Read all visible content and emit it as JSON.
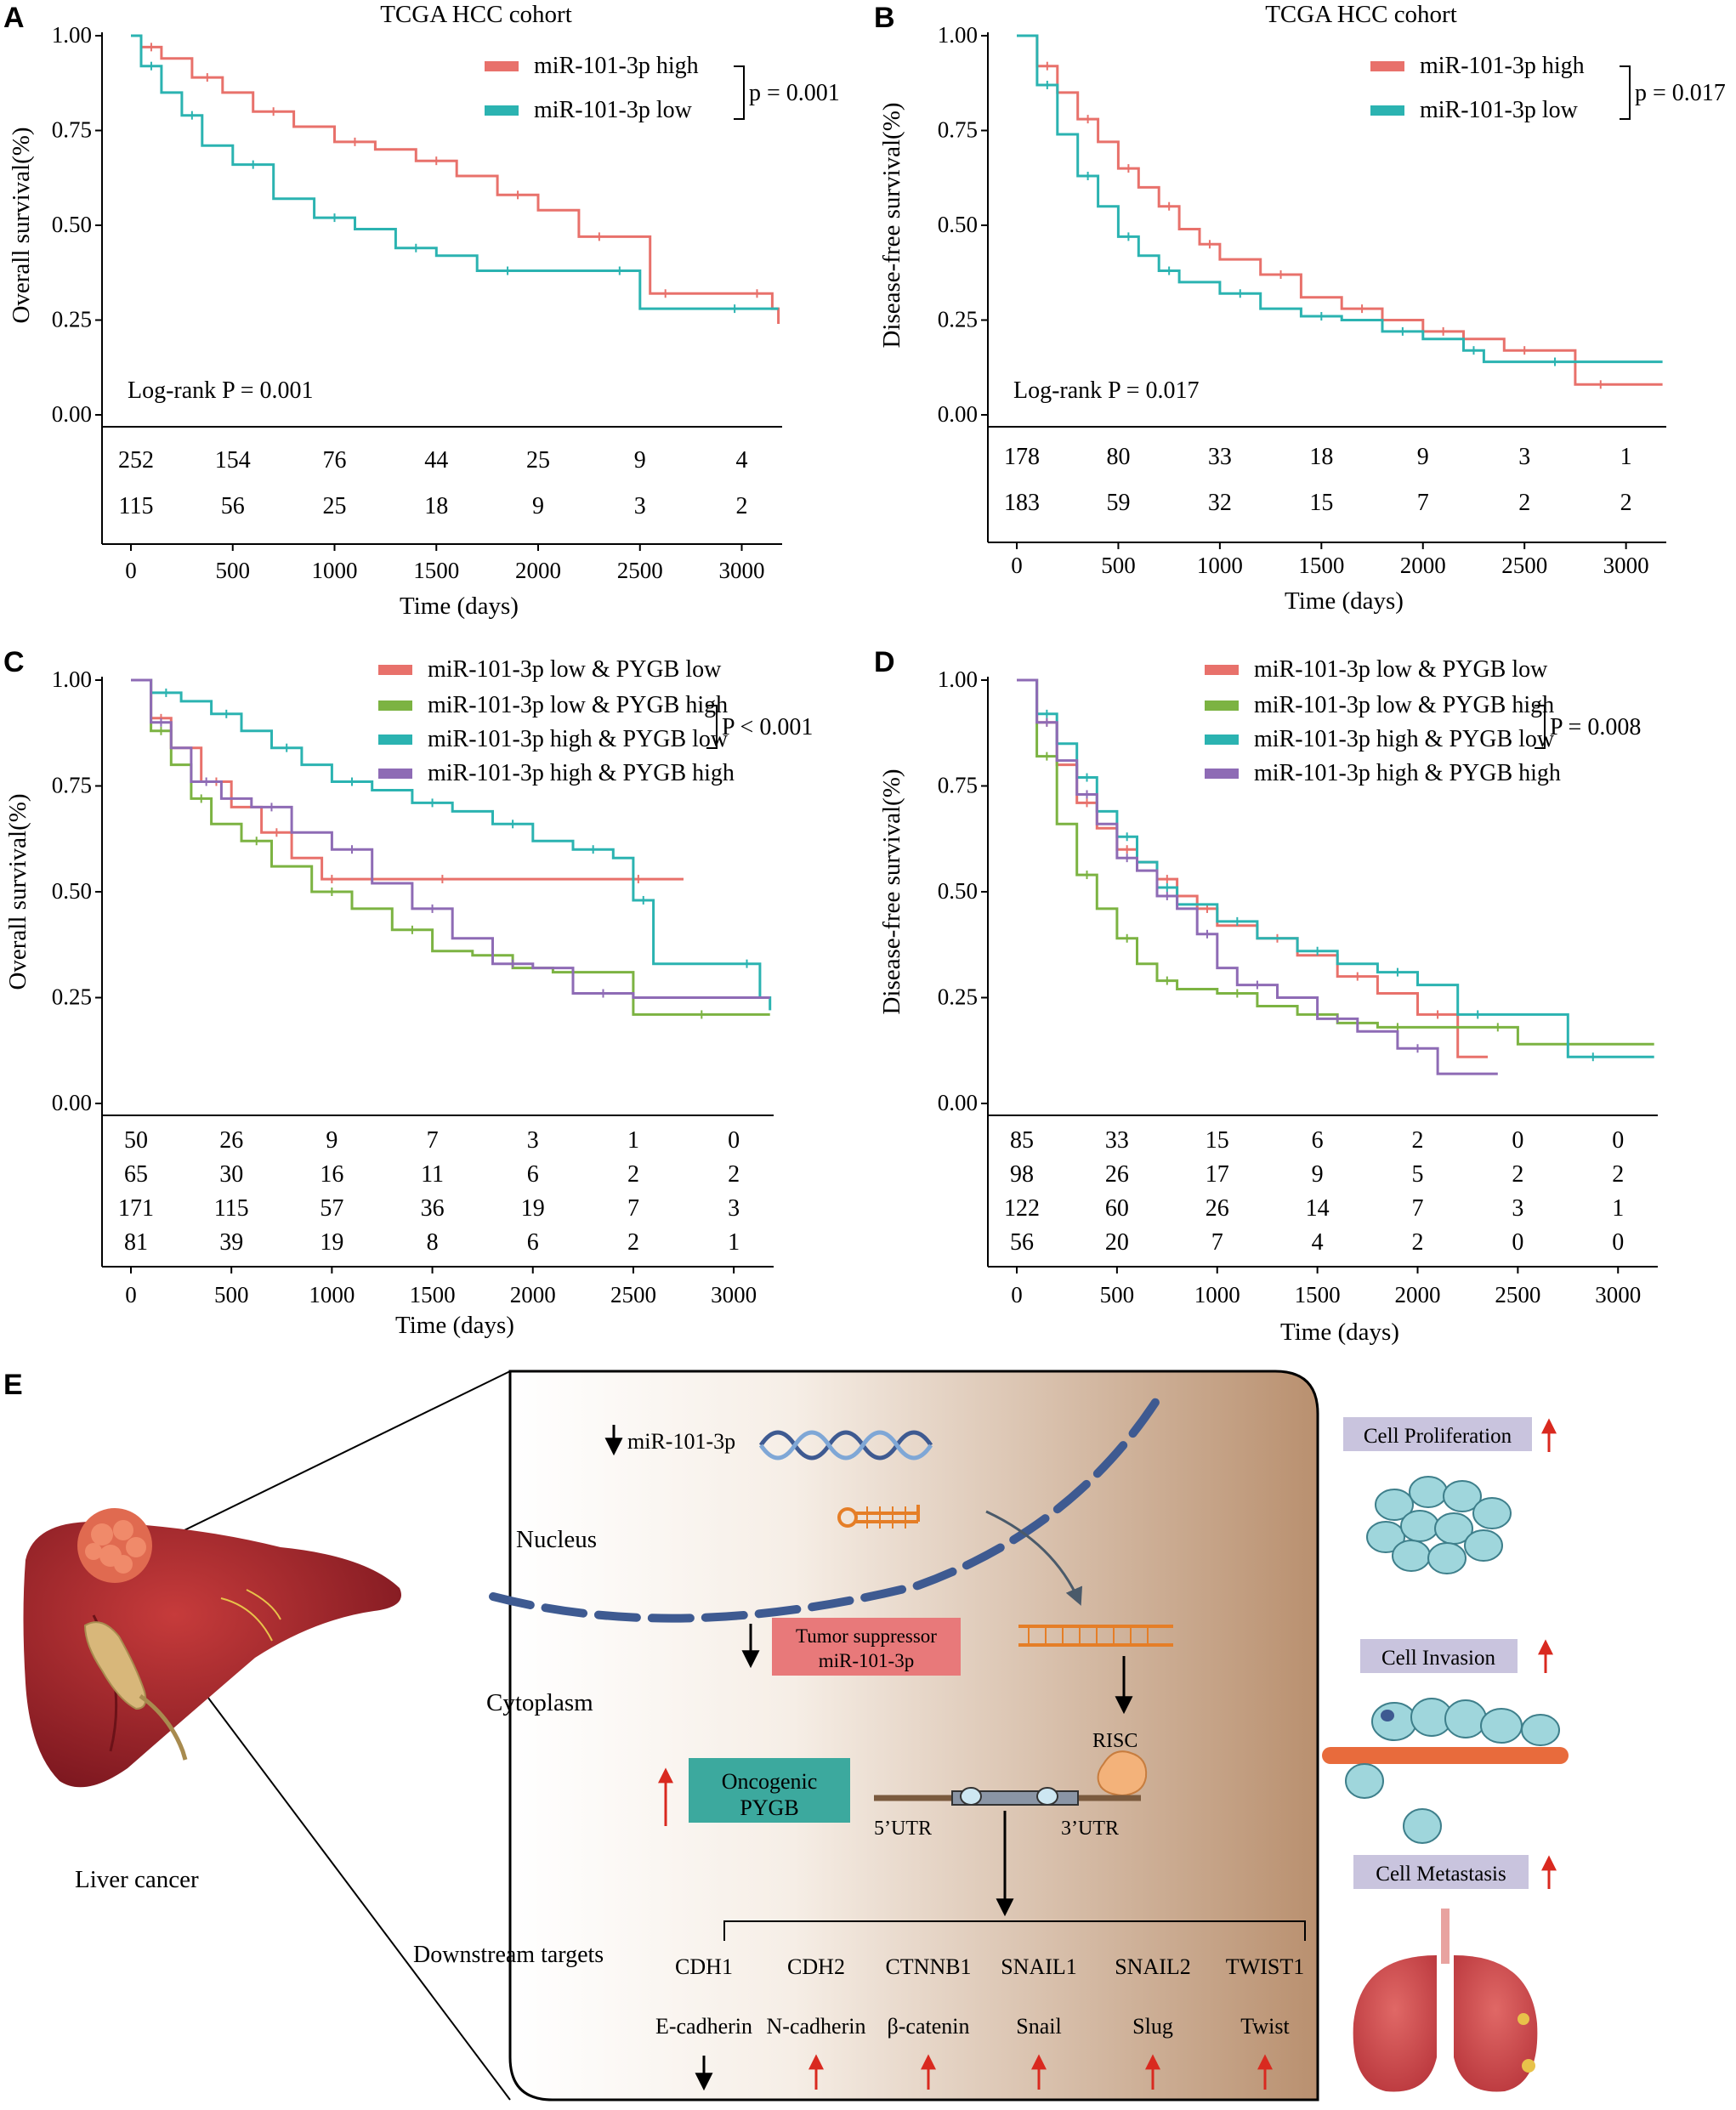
{
  "chart_data": [
    {
      "panel": "A",
      "type": "line",
      "subtype": "kaplan-meier",
      "title": "TCGA HCC cohort",
      "xlabel": "Time (days)",
      "ylabel": "Overall survival(%)",
      "xlim": [
        0,
        3200
      ],
      "ylim": [
        0,
        1
      ],
      "xticks": [
        "0",
        "500",
        "1000",
        "1500",
        "2000",
        "2500",
        "3000"
      ],
      "yticks": [
        "0.00",
        "0.25",
        "0.50",
        "0.75",
        "1.00"
      ],
      "annotation": "Log-rank P = 0.001",
      "legend_pvalue": "p = 0.001",
      "legend_position": "top-right",
      "series": [
        {
          "name": "miR-101-3p high",
          "color": "#E8716B",
          "x": [
            0,
            50,
            150,
            300,
            450,
            600,
            800,
            1000,
            1200,
            1400,
            1600,
            1800,
            2000,
            2200,
            2400,
            2550,
            2700,
            3000,
            3150,
            3180
          ],
          "y": [
            1.0,
            0.97,
            0.94,
            0.89,
            0.85,
            0.8,
            0.76,
            0.72,
            0.7,
            0.67,
            0.63,
            0.58,
            0.54,
            0.47,
            0.47,
            0.32,
            0.32,
            0.32,
            0.28,
            0.24
          ]
        },
        {
          "name": "miR-101-3p low",
          "color": "#2BB3B1",
          "x": [
            0,
            50,
            150,
            250,
            350,
            500,
            700,
            900,
            1100,
            1300,
            1500,
            1700,
            2000,
            2300,
            2500,
            2750,
            3180
          ],
          "y": [
            1.0,
            0.92,
            0.85,
            0.79,
            0.71,
            0.66,
            0.57,
            0.52,
            0.49,
            0.44,
            0.42,
            0.38,
            0.38,
            0.38,
            0.28,
            0.28,
            0.28
          ]
        }
      ],
      "risk_table": [
        [
          "252",
          "154",
          "76",
          "44",
          "25",
          "9",
          "4"
        ],
        [
          "115",
          "56",
          "25",
          "18",
          "9",
          "3",
          "2"
        ]
      ]
    },
    {
      "panel": "B",
      "type": "line",
      "subtype": "kaplan-meier",
      "title": "TCGA HCC cohort",
      "xlabel": "Time (days)",
      "ylabel": "Disease-free survival(%)",
      "xlim": [
        0,
        3200
      ],
      "ylim": [
        0,
        1
      ],
      "xticks": [
        "0",
        "500",
        "1000",
        "1500",
        "2000",
        "2500",
        "3000"
      ],
      "yticks": [
        "0.00",
        "0.25",
        "0.50",
        "0.75",
        "1.00"
      ],
      "annotation": "Log-rank P = 0.017",
      "legend_pvalue": "p = 0.017",
      "legend_position": "top-right",
      "series": [
        {
          "name": "miR-101-3p high",
          "color": "#E8716B",
          "x": [
            0,
            100,
            200,
            300,
            400,
            500,
            600,
            700,
            800,
            900,
            1000,
            1200,
            1400,
            1600,
            1800,
            2000,
            2200,
            2400,
            2600,
            2750,
            3000,
            3180
          ],
          "y": [
            1.0,
            0.92,
            0.85,
            0.78,
            0.72,
            0.65,
            0.6,
            0.55,
            0.49,
            0.45,
            0.41,
            0.37,
            0.31,
            0.28,
            0.25,
            0.22,
            0.2,
            0.17,
            0.17,
            0.08,
            0.08,
            0.08
          ]
        },
        {
          "name": "miR-101-3p low",
          "color": "#2BB3B1",
          "x": [
            0,
            100,
            200,
            300,
            400,
            500,
            600,
            700,
            800,
            1000,
            1200,
            1400,
            1600,
            1800,
            2000,
            2200,
            2300,
            2500,
            2800,
            3180
          ],
          "y": [
            1.0,
            0.87,
            0.74,
            0.63,
            0.55,
            0.47,
            0.42,
            0.38,
            0.35,
            0.32,
            0.28,
            0.26,
            0.25,
            0.22,
            0.2,
            0.17,
            0.14,
            0.14,
            0.14,
            0.14
          ]
        }
      ],
      "risk_table": [
        [
          "178",
          "80",
          "33",
          "18",
          "9",
          "3",
          "1"
        ],
        [
          "183",
          "59",
          "32",
          "15",
          "7",
          "2",
          "2"
        ]
      ]
    },
    {
      "panel": "C",
      "type": "line",
      "subtype": "kaplan-meier",
      "title": "",
      "xlabel": "Time (days)",
      "ylabel": "Overall survival(%)",
      "xlim": [
        0,
        3200
      ],
      "ylim": [
        0,
        1
      ],
      "xticks": [
        "0",
        "500",
        "1000",
        "1500",
        "2000",
        "2500",
        "3000"
      ],
      "yticks": [
        "0.00",
        "0.25",
        "0.50",
        "0.75",
        "1.00"
      ],
      "legend_pvalue": "P < 0.001",
      "legend_position": "top-right",
      "series": [
        {
          "name": "miR-101-3p low & PYGB low",
          "color": "#E8716B",
          "x": [
            0,
            100,
            200,
            350,
            500,
            650,
            800,
            950,
            1050,
            1300,
            1800,
            2300,
            2750
          ],
          "y": [
            1.0,
            0.91,
            0.84,
            0.76,
            0.7,
            0.64,
            0.58,
            0.53,
            0.53,
            0.53,
            0.53,
            0.53,
            0.53
          ]
        },
        {
          "name": "miR-101-3p low & PYGB high",
          "color": "#7CB342",
          "x": [
            0,
            100,
            200,
            300,
            400,
            550,
            700,
            900,
            1100,
            1300,
            1500,
            1700,
            1900,
            2100,
            2300,
            2500,
            3180
          ],
          "y": [
            1.0,
            0.88,
            0.8,
            0.72,
            0.66,
            0.62,
            0.56,
            0.5,
            0.46,
            0.41,
            0.36,
            0.35,
            0.32,
            0.31,
            0.31,
            0.21,
            0.21
          ]
        },
        {
          "name": "miR-101-3p high & PYGB low",
          "color": "#2BB3B1",
          "x": [
            0,
            100,
            250,
            400,
            550,
            700,
            850,
            1000,
            1200,
            1400,
            1600,
            1800,
            2000,
            2200,
            2400,
            2500,
            2600,
            3000,
            3130,
            3180
          ],
          "y": [
            1.0,
            0.97,
            0.95,
            0.92,
            0.88,
            0.84,
            0.8,
            0.76,
            0.74,
            0.71,
            0.69,
            0.66,
            0.62,
            0.6,
            0.58,
            0.48,
            0.33,
            0.33,
            0.25,
            0.22
          ]
        },
        {
          "name": "miR-101-3p high & PYGB high",
          "color": "#8E6BB5",
          "x": [
            0,
            100,
            200,
            300,
            450,
            600,
            800,
            1000,
            1200,
            1400,
            1600,
            1800,
            2000,
            2200,
            2500,
            3180
          ],
          "y": [
            1.0,
            0.9,
            0.84,
            0.76,
            0.72,
            0.7,
            0.64,
            0.6,
            0.52,
            0.46,
            0.39,
            0.33,
            0.32,
            0.26,
            0.25,
            0.25
          ]
        }
      ],
      "risk_table": [
        [
          "50",
          "26",
          "9",
          "7",
          "3",
          "1",
          "0"
        ],
        [
          "65",
          "30",
          "16",
          "11",
          "6",
          "2",
          "2"
        ],
        [
          "171",
          "115",
          "57",
          "36",
          "19",
          "7",
          "3"
        ],
        [
          "81",
          "39",
          "19",
          "8",
          "6",
          "2",
          "1"
        ]
      ]
    },
    {
      "panel": "D",
      "type": "line",
      "subtype": "kaplan-meier",
      "title": "",
      "xlabel": "Time (days)",
      "ylabel": "Disease-free survival(%)",
      "xlim": [
        0,
        3200
      ],
      "ylim": [
        0,
        1
      ],
      "xticks": [
        "0",
        "500",
        "1000",
        "1500",
        "2000",
        "2500",
        "3000"
      ],
      "yticks": [
        "0.00",
        "0.25",
        "0.50",
        "0.75",
        "1.00"
      ],
      "legend_pvalue": "P = 0.008",
      "legend_position": "top-right",
      "series": [
        {
          "name": "miR-101-3p low & PYGB low",
          "color": "#E8716B",
          "x": [
            0,
            100,
            200,
            300,
            400,
            500,
            600,
            700,
            800,
            900,
            1000,
            1200,
            1400,
            1600,
            1800,
            2000,
            2200,
            2350
          ],
          "y": [
            1.0,
            0.9,
            0.8,
            0.71,
            0.65,
            0.6,
            0.57,
            0.53,
            0.49,
            0.46,
            0.42,
            0.39,
            0.35,
            0.3,
            0.26,
            0.21,
            0.11,
            0.11
          ]
        },
        {
          "name": "miR-101-3p low & PYGB high",
          "color": "#7CB342",
          "x": [
            0,
            100,
            200,
            300,
            400,
            500,
            600,
            700,
            800,
            1000,
            1200,
            1400,
            1600,
            1800,
            2000,
            2300,
            2500,
            3180
          ],
          "y": [
            1.0,
            0.82,
            0.66,
            0.54,
            0.46,
            0.39,
            0.33,
            0.29,
            0.27,
            0.26,
            0.23,
            0.21,
            0.19,
            0.18,
            0.18,
            0.18,
            0.14,
            0.14
          ]
        },
        {
          "name": "miR-101-3p high & PYGB low",
          "color": "#2BB3B1",
          "x": [
            0,
            100,
            200,
            300,
            400,
            500,
            600,
            700,
            800,
            1000,
            1200,
            1400,
            1600,
            1800,
            2000,
            2200,
            2400,
            2750,
            3000,
            3180
          ],
          "y": [
            1.0,
            0.92,
            0.85,
            0.77,
            0.69,
            0.63,
            0.57,
            0.51,
            0.47,
            0.43,
            0.39,
            0.36,
            0.33,
            0.31,
            0.28,
            0.21,
            0.21,
            0.11,
            0.11,
            0.11
          ]
        },
        {
          "name": "miR-101-3p high & PYGB high",
          "color": "#8E6BB5",
          "x": [
            0,
            100,
            200,
            300,
            400,
            500,
            600,
            700,
            800,
            900,
            1000,
            1100,
            1300,
            1500,
            1700,
            1900,
            2100,
            2400
          ],
          "y": [
            1.0,
            0.9,
            0.81,
            0.73,
            0.66,
            0.58,
            0.55,
            0.49,
            0.46,
            0.4,
            0.32,
            0.28,
            0.25,
            0.2,
            0.17,
            0.13,
            0.07,
            0.07
          ]
        }
      ],
      "risk_table": [
        [
          "85",
          "33",
          "15",
          "6",
          "2",
          "0",
          "0"
        ],
        [
          "98",
          "26",
          "17",
          "9",
          "5",
          "2",
          "2"
        ],
        [
          "122",
          "60",
          "26",
          "14",
          "7",
          "3",
          "1"
        ],
        [
          "56",
          "20",
          "7",
          "4",
          "2",
          "0",
          "0"
        ]
      ]
    }
  ],
  "panel_labels": [
    "A",
    "B",
    "C",
    "D",
    "E"
  ],
  "diagram": {
    "liver_label": "Liver cancer",
    "mir_label": "miR-101-3p",
    "nucleus_label": "Nucleus",
    "cytoplasm_label": "Cytoplasm",
    "suppressor_label_1": "Tumor suppressor",
    "suppressor_label_2": "miR-101-3p",
    "oncogenic_label_1": "Oncogenic",
    "oncogenic_label_2": "PYGB",
    "risc_label": "RISC",
    "utr5_label": "5’UTR",
    "utr3_label": "3’UTR",
    "downstream_label": "Downstream targets",
    "genes": [
      "CDH1",
      "CDH2",
      "CTNNB1",
      "SNAIL1",
      "SNAIL2",
      "TWIST1"
    ],
    "proteins": [
      "E-cadherin",
      "N-cadherin",
      "β-catenin",
      "Snail",
      "Slug",
      "Twist"
    ],
    "protein_direction": [
      "down",
      "up",
      "up",
      "up",
      "up",
      "up"
    ],
    "outcomes": [
      "Cell Proliferation",
      "Cell Invasion",
      "Cell Metastasis"
    ],
    "colors": {
      "panel_bg_start": "#FFFFFF",
      "panel_bg_end": "#B9906F",
      "suppressor_box": "#E8797A",
      "oncogenic_box": "#3CA99E",
      "outcome_box": "#C9C4DE",
      "up_arrow": "#D9291F",
      "dna_blue": "#3E5A91",
      "rna_orange": "#E57E27",
      "liver": "#A8232A",
      "cell_cyan": "#9FD6DC"
    }
  }
}
